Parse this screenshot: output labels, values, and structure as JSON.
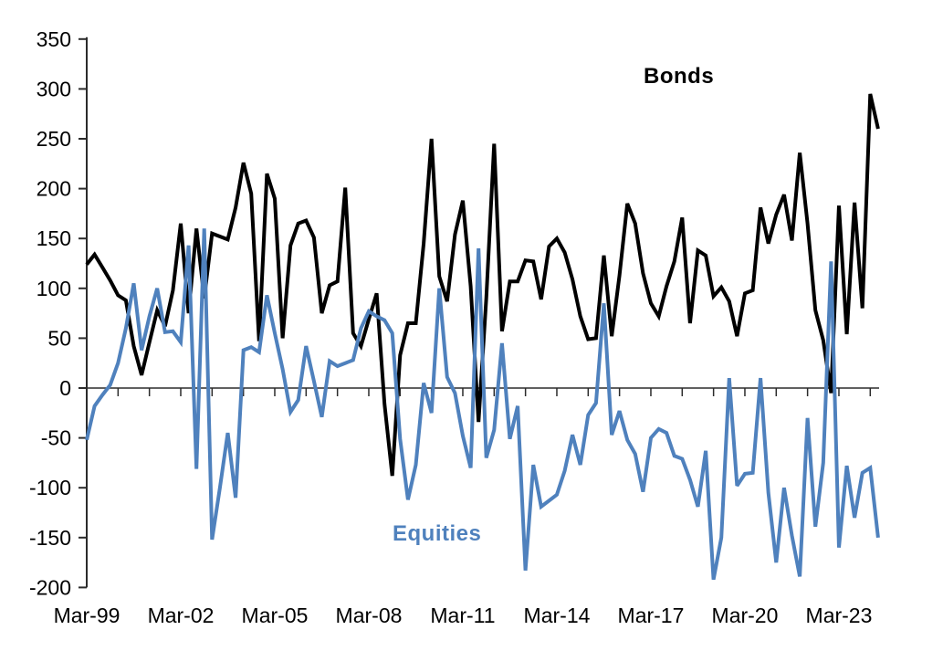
{
  "chart_data": {
    "type": "line",
    "title": "",
    "xlabel": "",
    "ylabel": "",
    "ylim": [
      -200,
      350
    ],
    "ytick_step": 50,
    "y_ticks": [
      350,
      300,
      250,
      200,
      150,
      100,
      50,
      0,
      -50,
      -100,
      -150,
      -200
    ],
    "x_tick_labels": [
      "Mar-99",
      "Mar-02",
      "Mar-05",
      "Mar-08",
      "Mar-11",
      "Mar-14",
      "Mar-17",
      "Mar-20",
      "Mar-23"
    ],
    "grid": "none",
    "legend_position": "inline-labels",
    "frequency": "quarterly",
    "categories": [
      "Mar-99",
      "Jun-99",
      "Sep-99",
      "Dec-99",
      "Mar-00",
      "Jun-00",
      "Sep-00",
      "Dec-00",
      "Mar-01",
      "Jun-01",
      "Sep-01",
      "Dec-01",
      "Mar-02",
      "Jun-02",
      "Sep-02",
      "Dec-02",
      "Mar-03",
      "Jun-03",
      "Sep-03",
      "Dec-03",
      "Mar-04",
      "Jun-04",
      "Sep-04",
      "Dec-04",
      "Mar-05",
      "Jun-05",
      "Sep-05",
      "Dec-05",
      "Mar-06",
      "Jun-06",
      "Sep-06",
      "Dec-06",
      "Mar-07",
      "Jun-07",
      "Sep-07",
      "Dec-07",
      "Mar-08",
      "Jun-08",
      "Sep-08",
      "Dec-08",
      "Mar-09",
      "Jun-09",
      "Sep-09",
      "Dec-09",
      "Mar-10",
      "Jun-10",
      "Sep-10",
      "Dec-10",
      "Mar-11",
      "Jun-11",
      "Sep-11",
      "Dec-11",
      "Mar-12",
      "Jun-12",
      "Sep-12",
      "Dec-12",
      "Mar-13",
      "Jun-13",
      "Sep-13",
      "Dec-13",
      "Mar-14",
      "Jun-14",
      "Sep-14",
      "Dec-14",
      "Mar-15",
      "Jun-15",
      "Sep-15",
      "Dec-15",
      "Mar-16",
      "Jun-16",
      "Sep-16",
      "Dec-16",
      "Mar-17",
      "Jun-17",
      "Sep-17",
      "Dec-17",
      "Mar-18",
      "Jun-18",
      "Sep-18",
      "Dec-18",
      "Mar-19",
      "Jun-19",
      "Sep-19",
      "Dec-19",
      "Mar-20",
      "Jun-20",
      "Sep-20",
      "Dec-20",
      "Mar-21",
      "Jun-21",
      "Sep-21",
      "Dec-21",
      "Mar-22",
      "Jun-22",
      "Sep-22",
      "Dec-22",
      "Mar-23",
      "Jun-23",
      "Sep-23",
      "Dec-23",
      "Mar-24",
      "Jun-24"
    ],
    "series": [
      {
        "name": "Bonds",
        "color": "#000000",
        "values": [
          124,
          134,
          121,
          108,
          93,
          88,
          42,
          13,
          46,
          78,
          62,
          98,
          165,
          75,
          160,
          90,
          155,
          152,
          149,
          181,
          226,
          195,
          47,
          215,
          190,
          50,
          143,
          165,
          168,
          151,
          75,
          103,
          107,
          201,
          55,
          42,
          69,
          95,
          -16,
          -88,
          33,
          65,
          65,
          145,
          250,
          112,
          87,
          154,
          188,
          102,
          -34,
          90,
          245,
          57,
          107,
          107,
          128,
          127,
          89,
          142,
          150,
          136,
          109,
          72,
          49,
          50,
          133,
          52,
          113,
          185,
          165,
          115,
          85,
          72,
          102,
          127,
          171,
          65,
          138,
          133,
          92,
          101,
          87,
          52,
          95,
          98,
          181,
          145,
          174,
          194,
          148,
          236,
          165,
          78,
          48,
          -5,
          183,
          54,
          186,
          80,
          295,
          260
        ]
      },
      {
        "name": "Equities",
        "color": "#4F81BD",
        "values": [
          -52,
          -18,
          -7,
          3,
          25,
          60,
          105,
          38,
          72,
          100,
          56,
          57,
          46,
          143,
          -81,
          160,
          -152,
          -100,
          -45,
          -110,
          38,
          41,
          36,
          93,
          55,
          19,
          -24,
          -12,
          42,
          7,
          -29,
          27,
          22,
          25,
          28,
          60,
          77,
          72,
          68,
          55,
          -51,
          -112,
          -77,
          5,
          -25,
          100,
          11,
          -5,
          -48,
          -80,
          140,
          -70,
          -42,
          45,
          -51,
          -18,
          -183,
          -77,
          -119,
          -113,
          -107,
          -83,
          -47,
          -77,
          -27,
          -15,
          85,
          -47,
          -23,
          -52,
          -66,
          -104,
          -50,
          -41,
          -45,
          -68,
          -71,
          -92,
          -119,
          -63,
          -192,
          -150,
          10,
          -98,
          -86,
          -85,
          10,
          -105,
          -175,
          -100,
          -148,
          -189,
          -30,
          -139,
          -75,
          127,
          -160,
          -78,
          -130,
          -85,
          -80,
          -150
        ]
      }
    ]
  }
}
